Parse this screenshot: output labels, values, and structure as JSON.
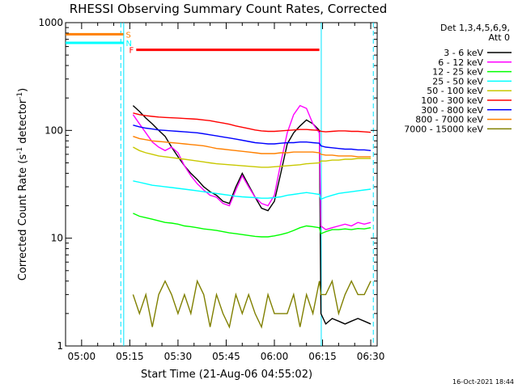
{
  "chart_data": {
    "type": "line",
    "title": "RHESSI Observing Summary Count Rates, Corrected",
    "xlabel": "Start Time (21-Aug-06 04:55:02)",
    "ylabel_main": "Corrected Count Rate (s",
    "ylabel_sup1": "-1",
    "ylabel_mid": " detector",
    "ylabel_sup2": "-1",
    "ylabel_end": ")",
    "y_scale": "log",
    "ylim": [
      1,
      1000
    ],
    "xlim_minutes": [
      295,
      392
    ],
    "y_ticks": [
      {
        "value": 1,
        "label": "1"
      },
      {
        "value": 10,
        "label": "10"
      },
      {
        "value": 100,
        "label": "100"
      },
      {
        "value": 1000,
        "label": "1000"
      }
    ],
    "x_ticks": [
      {
        "minute": 300,
        "label": "05:00"
      },
      {
        "minute": 315,
        "label": "05:15"
      },
      {
        "minute": 330,
        "label": "05:30"
      },
      {
        "minute": 345,
        "label": "05:45"
      },
      {
        "minute": 360,
        "label": "06:00"
      },
      {
        "minute": 375,
        "label": "06:15"
      },
      {
        "minute": 390,
        "label": "06:30"
      }
    ],
    "legend_header": [
      "Det 1,3,4,5,6,9,",
      "Att 0"
    ],
    "legend_position": "right",
    "footer_timestamp": "16-Oct-2021 18:44",
    "flags": [
      {
        "label": "S",
        "color": "#ff8000",
        "y_value": 780,
        "start": 295,
        "end": 313
      },
      {
        "label": "N",
        "color": "#00ffff",
        "y_value": 650,
        "start": 295,
        "end": 313
      },
      {
        "label": "F",
        "color": "#ff0000",
        "y_value": 560,
        "start": 317,
        "end": 374
      }
    ],
    "night_intervals": [
      {
        "start": 295,
        "end": 313.1
      },
      {
        "start": 374.6,
        "end": 392
      }
    ],
    "series": [
      {
        "name": "3 - 6 keV",
        "color": "#000000",
        "x": [
          316,
          318,
          320,
          322,
          324,
          326,
          328,
          330,
          332,
          334,
          336,
          338,
          340,
          342,
          344,
          346,
          348,
          350,
          352,
          354,
          356,
          358,
          360,
          362,
          364,
          366,
          368,
          370,
          372,
          374,
          374.5,
          376,
          378,
          380,
          382,
          384,
          386,
          388,
          390
        ],
        "y": [
          170,
          150,
          130,
          115,
          100,
          88,
          70,
          57,
          47,
          40,
          35,
          30,
          27,
          25,
          22,
          21,
          30,
          40,
          31,
          24,
          19,
          18,
          22,
          40,
          75,
          95,
          110,
          125,
          115,
          100,
          2,
          1.6,
          1.8,
          1.7,
          1.6,
          1.7,
          1.8,
          1.7,
          1.6
        ]
      },
      {
        "name": "6 - 12 keV",
        "color": "#ff00ff",
        "x": [
          316,
          318,
          320,
          322,
          324,
          326,
          328,
          330,
          332,
          334,
          336,
          338,
          340,
          342,
          344,
          346,
          348,
          350,
          352,
          354,
          356,
          358,
          360,
          362,
          364,
          366,
          368,
          370,
          372,
          374,
          374.5,
          376,
          378,
          380,
          382,
          384,
          386,
          388,
          390
        ],
        "y": [
          140,
          115,
          95,
          78,
          70,
          65,
          70,
          62,
          47,
          38,
          32,
          28,
          25,
          24,
          21,
          20,
          28,
          38,
          30,
          24,
          21,
          20,
          25,
          50,
          95,
          140,
          170,
          160,
          115,
          95,
          13,
          12,
          12.5,
          13,
          13.5,
          13,
          14,
          13.5,
          14
        ]
      },
      {
        "name": "12 - 25 keV",
        "color": "#00ff00",
        "x": [
          316,
          318,
          320,
          322,
          324,
          326,
          328,
          330,
          332,
          334,
          336,
          338,
          340,
          342,
          344,
          346,
          348,
          350,
          352,
          354,
          356,
          358,
          360,
          362,
          364,
          366,
          368,
          370,
          372,
          374,
          374.5,
          376,
          378,
          380,
          382,
          384,
          386,
          388,
          390
        ],
        "y": [
          17,
          16,
          15.5,
          15,
          14.5,
          14,
          13.8,
          13.5,
          13,
          12.8,
          12.5,
          12.2,
          12,
          11.8,
          11.5,
          11.2,
          11,
          10.8,
          10.6,
          10.4,
          10.3,
          10.3,
          10.5,
          10.8,
          11.2,
          11.8,
          12.5,
          13,
          12.8,
          12.5,
          11,
          11.5,
          12,
          12,
          12.2,
          12,
          12.3,
          12.2,
          12.5
        ]
      },
      {
        "name": "25 - 50 keV",
        "color": "#00ffff",
        "x": [
          316,
          318,
          320,
          322,
          324,
          326,
          328,
          330,
          332,
          334,
          336,
          338,
          340,
          342,
          344,
          346,
          348,
          350,
          352,
          354,
          356,
          358,
          360,
          362,
          364,
          366,
          368,
          370,
          372,
          374,
          374.5,
          376,
          378,
          380,
          382,
          384,
          386,
          388,
          390
        ],
        "y": [
          34,
          33,
          32,
          31,
          30.5,
          30,
          29.5,
          29,
          28.5,
          28,
          27.5,
          27,
          26.5,
          26,
          25.5,
          25,
          24.5,
          24.2,
          24,
          23.8,
          23.5,
          23.5,
          23.8,
          24.2,
          25,
          25.5,
          26,
          26.5,
          26,
          25.5,
          23,
          24,
          25,
          26,
          26.5,
          27,
          27.5,
          28,
          28.5
        ]
      },
      {
        "name": "50 - 100 keV",
        "color": "#c8c800",
        "x": [
          316,
          318,
          320,
          322,
          324,
          326,
          328,
          330,
          332,
          334,
          336,
          338,
          340,
          342,
          344,
          346,
          348,
          350,
          352,
          354,
          356,
          358,
          360,
          362,
          364,
          366,
          368,
          370,
          372,
          374,
          374.5,
          376,
          378,
          380,
          382,
          384,
          386,
          388,
          390
        ],
        "y": [
          70,
          65,
          62,
          60,
          58,
          57,
          56,
          55,
          54,
          53,
          52,
          51,
          50,
          49,
          48.5,
          48,
          47.5,
          47,
          46.5,
          46,
          45.5,
          45.5,
          46,
          46.5,
          47,
          47.5,
          48,
          49,
          49.5,
          50,
          52,
          52,
          53,
          53,
          54,
          54,
          55,
          55,
          55
        ]
      },
      {
        "name": "100 - 300 keV",
        "color": "#ff0000",
        "x": [
          316,
          318,
          320,
          322,
          324,
          326,
          328,
          330,
          332,
          334,
          336,
          338,
          340,
          342,
          344,
          346,
          348,
          350,
          352,
          354,
          356,
          358,
          360,
          362,
          364,
          366,
          368,
          370,
          372,
          374,
          374.5,
          376,
          378,
          380,
          382,
          384,
          386,
          388,
          390
        ],
        "y": [
          145,
          140,
          137,
          135,
          133,
          132,
          131,
          130,
          129,
          128,
          127,
          125,
          123,
          120,
          117,
          114,
          110,
          107,
          104,
          101,
          99,
          98,
          98,
          99,
          100,
          101,
          102,
          102,
          101,
          100,
          98,
          97,
          98,
          99,
          99,
          98,
          98,
          97,
          96
        ]
      },
      {
        "name": "300 - 800 keV",
        "color": "#0000ff",
        "x": [
          316,
          318,
          320,
          322,
          324,
          326,
          328,
          330,
          332,
          334,
          336,
          338,
          340,
          342,
          344,
          346,
          348,
          350,
          352,
          354,
          356,
          358,
          360,
          362,
          364,
          366,
          368,
          370,
          372,
          374,
          374.5,
          376,
          378,
          380,
          382,
          384,
          386,
          388,
          390
        ],
        "y": [
          112,
          108,
          105,
          103,
          101,
          100,
          99,
          98,
          97,
          96,
          95,
          93,
          91,
          89,
          87,
          85,
          83,
          81,
          79,
          77,
          76,
          75,
          75,
          76,
          77,
          77,
          78,
          78,
          77,
          76,
          72,
          70,
          69,
          68,
          67,
          67,
          66,
          66,
          65
        ]
      },
      {
        "name": "800 - 7000 keV",
        "color": "#ff8000",
        "x": [
          316,
          318,
          320,
          322,
          324,
          326,
          328,
          330,
          332,
          334,
          336,
          338,
          340,
          342,
          344,
          346,
          348,
          350,
          352,
          354,
          356,
          358,
          360,
          362,
          364,
          366,
          368,
          370,
          372,
          374,
          374.5,
          376,
          378,
          380,
          382,
          384,
          386,
          388,
          390
        ],
        "y": [
          88,
          84,
          82,
          80,
          79,
          78,
          77,
          76,
          75,
          74,
          73,
          72,
          70,
          68,
          67,
          66,
          65,
          64,
          63,
          62,
          61,
          61,
          61,
          62,
          62,
          63,
          63,
          63,
          63,
          62,
          60,
          59,
          59,
          58,
          58,
          58,
          57,
          57,
          57
        ]
      },
      {
        "name": "7000 - 15000 keV",
        "color": "#808000",
        "x": [
          316,
          318,
          320,
          322,
          324,
          326,
          328,
          330,
          332,
          334,
          336,
          338,
          340,
          342,
          344,
          346,
          348,
          350,
          352,
          354,
          356,
          358,
          360,
          362,
          364,
          366,
          368,
          370,
          372,
          374,
          374.5,
          376,
          378,
          380,
          382,
          384,
          386,
          388,
          390
        ],
        "y": [
          3,
          2,
          3,
          1.5,
          3,
          4,
          3,
          2,
          3,
          2,
          4,
          3,
          1.5,
          3,
          2,
          1.5,
          3,
          2,
          3,
          2,
          1.5,
          3,
          2,
          2,
          2,
          3,
          1.5,
          3,
          2,
          4,
          3,
          3,
          4,
          2,
          3,
          4,
          3,
          3,
          4
        ]
      }
    ]
  }
}
